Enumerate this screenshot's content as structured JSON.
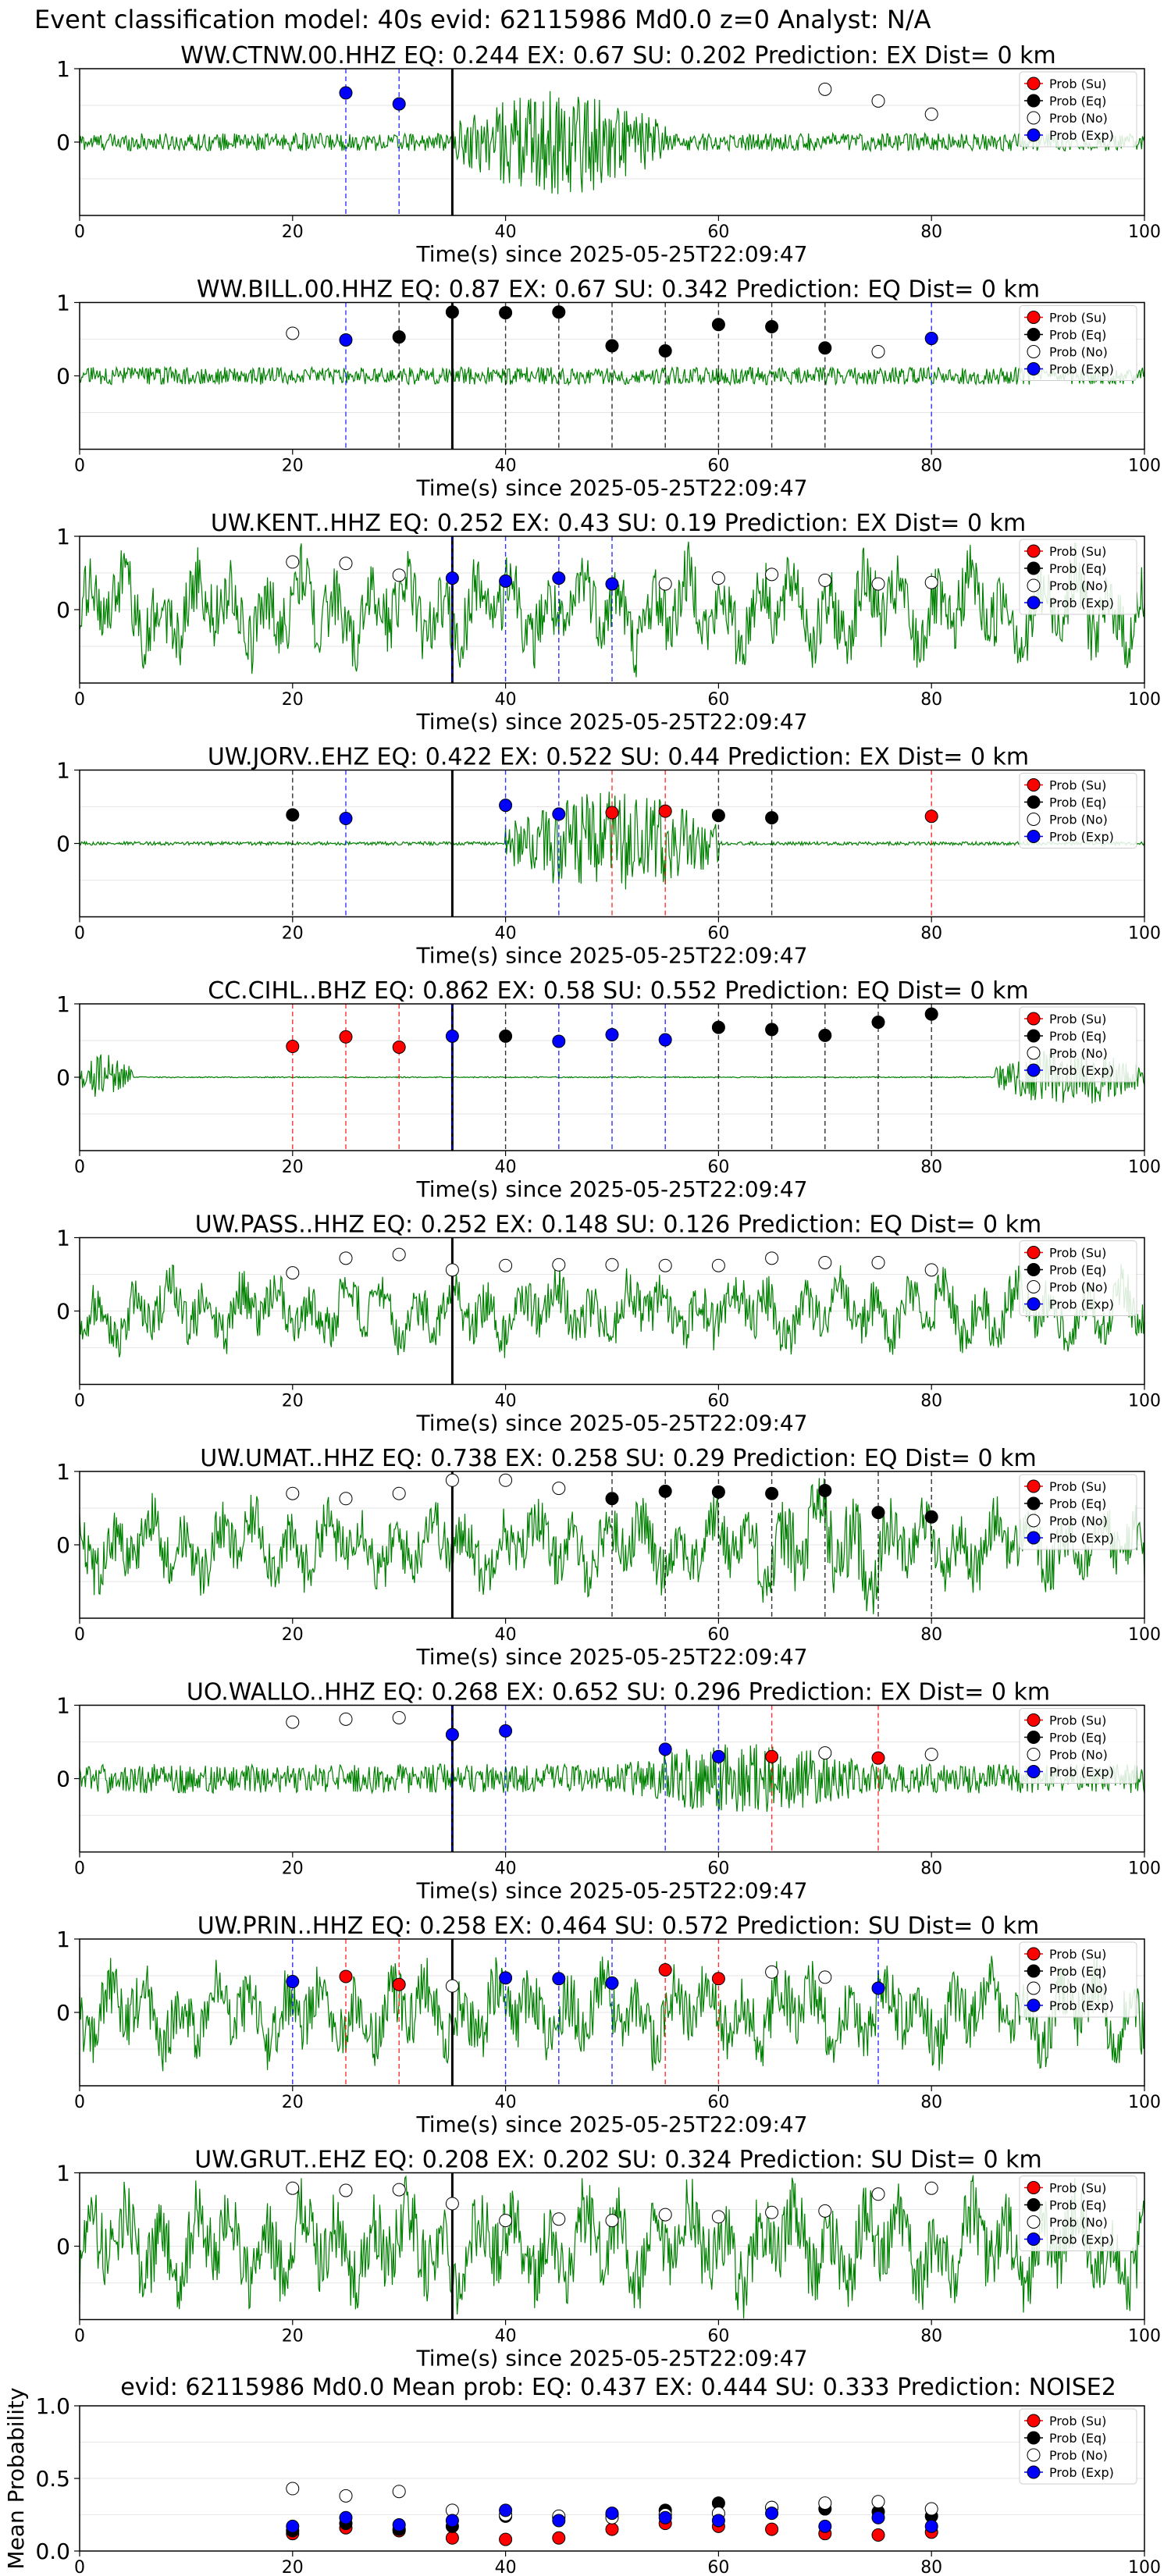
{
  "figure": {
    "suptitle": "Event classification model: 40s evid: 62115986 Md0.0 z=0 Analyst: N/A",
    "legend_labels": [
      "Prob (Su)",
      "Prob (Eq)",
      "Prob (No)",
      "Prob (Exp)"
    ],
    "colors": {
      "su": "#ff0000",
      "eq": "#000000",
      "no": "#ffffff",
      "exp": "#0000ff",
      "trace": "#008000"
    }
  },
  "chart_data": [
    {
      "type": "line",
      "title": "WW.CTNW.00.HHZ   EQ: 0.244  EX: 0.67  SU: 0.202   Prediction: EX    Dist= 0 km",
      "xlabel": "Time(s) since 2025-05-25T22:09:47",
      "ylabel": "",
      "xlim": [
        0,
        100
      ],
      "ylim": [
        -1,
        1
      ],
      "xticks": [
        0,
        20,
        40,
        60,
        80,
        100
      ],
      "yticks": [
        1,
        0
      ],
      "pick_time": 35,
      "trace": {
        "noise_level": 0.15,
        "burst": [
          [
            35,
            55,
            0.9
          ]
        ]
      },
      "markers": [
        {
          "x": 25,
          "y": 0.67,
          "class": "exp"
        },
        {
          "x": 30,
          "y": 0.52,
          "class": "exp"
        },
        {
          "x": 70,
          "y": 0.72,
          "class": "no"
        },
        {
          "x": 75,
          "y": 0.56,
          "class": "no"
        },
        {
          "x": 80,
          "y": 0.38,
          "class": "no"
        }
      ]
    },
    {
      "type": "line",
      "title": "WW.BILL.00.HHZ   EQ: 0.87  EX: 0.67  SU: 0.342   Prediction: EQ    Dist= 0 km",
      "xlabel": "Time(s) since 2025-05-25T22:09:47",
      "ylabel": "",
      "xlim": [
        0,
        100
      ],
      "ylim": [
        -1,
        1
      ],
      "xticks": [
        0,
        20,
        40,
        60,
        80,
        100
      ],
      "yticks": [
        1,
        0
      ],
      "pick_time": 35,
      "trace": {
        "noise_level": 0.15,
        "burst": []
      },
      "markers": [
        {
          "x": 20,
          "y": 0.58,
          "class": "no"
        },
        {
          "x": 25,
          "y": 0.49,
          "class": "exp"
        },
        {
          "x": 30,
          "y": 0.53,
          "class": "eq"
        },
        {
          "x": 35,
          "y": 0.87,
          "class": "eq"
        },
        {
          "x": 40,
          "y": 0.86,
          "class": "eq"
        },
        {
          "x": 45,
          "y": 0.87,
          "class": "eq"
        },
        {
          "x": 50,
          "y": 0.41,
          "class": "eq"
        },
        {
          "x": 55,
          "y": 0.34,
          "class": "eq"
        },
        {
          "x": 60,
          "y": 0.7,
          "class": "eq"
        },
        {
          "x": 65,
          "y": 0.67,
          "class": "eq"
        },
        {
          "x": 70,
          "y": 0.38,
          "class": "eq"
        },
        {
          "x": 75,
          "y": 0.33,
          "class": "no"
        },
        {
          "x": 80,
          "y": 0.51,
          "class": "exp"
        }
      ]
    },
    {
      "type": "line",
      "title": "UW.KENT..HHZ   EQ: 0.252  EX: 0.43  SU: 0.19   Prediction: EX    Dist= 0 km",
      "xlabel": "Time(s) since 2025-05-25T22:09:47",
      "ylabel": "",
      "xlim": [
        0,
        100
      ],
      "ylim": [
        -1,
        1
      ],
      "xticks": [
        0,
        20,
        40,
        60,
        80,
        100
      ],
      "yticks": [
        1,
        0
      ],
      "pick_time": 35,
      "trace": {
        "noise_level": 0.55,
        "burst": []
      },
      "markers": [
        {
          "x": 20,
          "y": 0.65,
          "class": "no"
        },
        {
          "x": 25,
          "y": 0.63,
          "class": "no"
        },
        {
          "x": 30,
          "y": 0.47,
          "class": "no"
        },
        {
          "x": 35,
          "y": 0.43,
          "class": "exp"
        },
        {
          "x": 40,
          "y": 0.39,
          "class": "exp"
        },
        {
          "x": 45,
          "y": 0.43,
          "class": "exp"
        },
        {
          "x": 50,
          "y": 0.35,
          "class": "exp"
        },
        {
          "x": 55,
          "y": 0.35,
          "class": "no"
        },
        {
          "x": 60,
          "y": 0.43,
          "class": "no"
        },
        {
          "x": 65,
          "y": 0.48,
          "class": "no"
        },
        {
          "x": 70,
          "y": 0.4,
          "class": "no"
        },
        {
          "x": 75,
          "y": 0.35,
          "class": "no"
        },
        {
          "x": 80,
          "y": 0.37,
          "class": "no"
        }
      ]
    },
    {
      "type": "line",
      "title": "UW.JORV..EHZ   EQ: 0.422  EX: 0.522  SU: 0.44   Prediction: EX    Dist= 0 km",
      "xlabel": "Time(s) since 2025-05-25T22:09:47",
      "ylabel": "",
      "xlim": [
        0,
        100
      ],
      "ylim": [
        -1,
        1
      ],
      "xticks": [
        0,
        20,
        40,
        60,
        80,
        100
      ],
      "yticks": [
        1,
        0
      ],
      "pick_time": 35,
      "trace": {
        "noise_level": 0.03,
        "burst": [
          [
            40,
            60,
            0.9
          ]
        ]
      },
      "markers": [
        {
          "x": 20,
          "y": 0.39,
          "class": "eq"
        },
        {
          "x": 25,
          "y": 0.34,
          "class": "exp"
        },
        {
          "x": 40,
          "y": 0.52,
          "class": "exp"
        },
        {
          "x": 45,
          "y": 0.4,
          "class": "exp"
        },
        {
          "x": 50,
          "y": 0.42,
          "class": "su"
        },
        {
          "x": 55,
          "y": 0.44,
          "class": "su"
        },
        {
          "x": 60,
          "y": 0.38,
          "class": "eq"
        },
        {
          "x": 65,
          "y": 0.35,
          "class": "eq"
        },
        {
          "x": 80,
          "y": 0.37,
          "class": "su"
        }
      ]
    },
    {
      "type": "line",
      "title": "CC.CIHL..BHZ   EQ: 0.862  EX: 0.58  SU: 0.552   Prediction: EQ    Dist= 0 km",
      "xlabel": "Time(s) since 2025-05-25T22:09:47",
      "ylabel": "",
      "xlim": [
        0,
        100
      ],
      "ylim": [
        -1,
        1
      ],
      "xticks": [
        0,
        20,
        40,
        60,
        80,
        100
      ],
      "yticks": [
        1,
        0
      ],
      "pick_time": 35,
      "trace": {
        "noise_level": 0.01,
        "burst": [
          [
            0,
            5,
            0.4
          ],
          [
            86,
            100,
            0.5
          ]
        ]
      },
      "markers": [
        {
          "x": 20,
          "y": 0.42,
          "class": "su"
        },
        {
          "x": 25,
          "y": 0.55,
          "class": "su"
        },
        {
          "x": 30,
          "y": 0.41,
          "class": "su"
        },
        {
          "x": 35,
          "y": 0.56,
          "class": "exp"
        },
        {
          "x": 40,
          "y": 0.56,
          "class": "eq"
        },
        {
          "x": 45,
          "y": 0.49,
          "class": "exp"
        },
        {
          "x": 50,
          "y": 0.58,
          "class": "exp"
        },
        {
          "x": 55,
          "y": 0.51,
          "class": "exp"
        },
        {
          "x": 60,
          "y": 0.68,
          "class": "eq"
        },
        {
          "x": 65,
          "y": 0.65,
          "class": "eq"
        },
        {
          "x": 70,
          "y": 0.57,
          "class": "eq"
        },
        {
          "x": 75,
          "y": 0.75,
          "class": "eq"
        },
        {
          "x": 80,
          "y": 0.86,
          "class": "eq"
        }
      ]
    },
    {
      "type": "line",
      "title": "UW.PASS..HHZ   EQ: 0.252  EX: 0.148  SU: 0.126   Prediction: EQ    Dist= 0 km",
      "xlabel": "Time(s) since 2025-05-25T22:09:47",
      "ylabel": "",
      "xlim": [
        0,
        100
      ],
      "ylim": [
        -1,
        1
      ],
      "xticks": [
        0,
        20,
        40,
        60,
        80,
        100
      ],
      "yticks": [
        1,
        0
      ],
      "pick_time": 35,
      "trace": {
        "noise_level": 0.4,
        "burst": []
      },
      "markers": [
        {
          "x": 20,
          "y": 0.52,
          "class": "no"
        },
        {
          "x": 25,
          "y": 0.72,
          "class": "no"
        },
        {
          "x": 30,
          "y": 0.77,
          "class": "no"
        },
        {
          "x": 35,
          "y": 0.56,
          "class": "no"
        },
        {
          "x": 40,
          "y": 0.62,
          "class": "no"
        },
        {
          "x": 45,
          "y": 0.63,
          "class": "no"
        },
        {
          "x": 50,
          "y": 0.63,
          "class": "no"
        },
        {
          "x": 55,
          "y": 0.62,
          "class": "no"
        },
        {
          "x": 60,
          "y": 0.62,
          "class": "no"
        },
        {
          "x": 65,
          "y": 0.72,
          "class": "no"
        },
        {
          "x": 70,
          "y": 0.66,
          "class": "no"
        },
        {
          "x": 75,
          "y": 0.66,
          "class": "no"
        },
        {
          "x": 80,
          "y": 0.56,
          "class": "no"
        }
      ]
    },
    {
      "type": "line",
      "title": "UW.UMAT..HHZ   EQ: 0.738  EX: 0.258  SU: 0.29   Prediction: EQ    Dist= 0 km",
      "xlabel": "Time(s) since 2025-05-25T22:09:47",
      "ylabel": "",
      "xlim": [
        0,
        100
      ],
      "ylim": [
        -1,
        1
      ],
      "xticks": [
        0,
        20,
        40,
        60,
        80,
        100
      ],
      "yticks": [
        1,
        0
      ],
      "pick_time": 35,
      "trace": {
        "noise_level": 0.45,
        "burst": [
          [
            60,
            80,
            0.7
          ]
        ]
      },
      "markers": [
        {
          "x": 20,
          "y": 0.7,
          "class": "no"
        },
        {
          "x": 25,
          "y": 0.63,
          "class": "no"
        },
        {
          "x": 30,
          "y": 0.7,
          "class": "no"
        },
        {
          "x": 35,
          "y": 0.88,
          "class": "no"
        },
        {
          "x": 40,
          "y": 0.88,
          "class": "no"
        },
        {
          "x": 45,
          "y": 0.77,
          "class": "no"
        },
        {
          "x": 50,
          "y": 0.63,
          "class": "eq"
        },
        {
          "x": 55,
          "y": 0.73,
          "class": "eq"
        },
        {
          "x": 60,
          "y": 0.72,
          "class": "eq"
        },
        {
          "x": 65,
          "y": 0.7,
          "class": "eq"
        },
        {
          "x": 70,
          "y": 0.74,
          "class": "eq"
        },
        {
          "x": 75,
          "y": 0.44,
          "class": "eq"
        },
        {
          "x": 80,
          "y": 0.38,
          "class": "eq"
        }
      ]
    },
    {
      "type": "line",
      "title": "UO.WALLO..HHZ   EQ: 0.268  EX: 0.652  SU: 0.296   Prediction: EX    Dist= 0 km",
      "xlabel": "Time(s) since 2025-05-25T22:09:47",
      "ylabel": "",
      "xlim": [
        0,
        100
      ],
      "ylim": [
        -1,
        1
      ],
      "xticks": [
        0,
        20,
        40,
        60,
        80,
        100
      ],
      "yticks": [
        1,
        0
      ],
      "pick_time": 35,
      "trace": {
        "noise_level": 0.25,
        "burst": [
          [
            50,
            75,
            0.6
          ]
        ]
      },
      "markers": [
        {
          "x": 20,
          "y": 0.77,
          "class": "no"
        },
        {
          "x": 25,
          "y": 0.81,
          "class": "no"
        },
        {
          "x": 30,
          "y": 0.83,
          "class": "no"
        },
        {
          "x": 35,
          "y": 0.6,
          "class": "exp"
        },
        {
          "x": 40,
          "y": 0.65,
          "class": "exp"
        },
        {
          "x": 55,
          "y": 0.4,
          "class": "exp"
        },
        {
          "x": 60,
          "y": 0.3,
          "class": "exp"
        },
        {
          "x": 65,
          "y": 0.3,
          "class": "su"
        },
        {
          "x": 70,
          "y": 0.35,
          "class": "no"
        },
        {
          "x": 75,
          "y": 0.28,
          "class": "su"
        },
        {
          "x": 80,
          "y": 0.33,
          "class": "no"
        }
      ]
    },
    {
      "type": "line",
      "title": "UW.PRIN..HHZ   EQ: 0.258  EX: 0.464  SU: 0.572   Prediction: SU    Dist= 0 km",
      "xlabel": "Time(s) since 2025-05-25T22:09:47",
      "ylabel": "",
      "xlim": [
        0,
        100
      ],
      "ylim": [
        -1,
        1
      ],
      "xticks": [
        0,
        20,
        40,
        60,
        80,
        100
      ],
      "yticks": [
        1,
        0
      ],
      "pick_time": 35,
      "trace": {
        "noise_level": 0.5,
        "burst": []
      },
      "markers": [
        {
          "x": 20,
          "y": 0.42,
          "class": "exp"
        },
        {
          "x": 25,
          "y": 0.49,
          "class": "su"
        },
        {
          "x": 30,
          "y": 0.38,
          "class": "su"
        },
        {
          "x": 35,
          "y": 0.36,
          "class": "no"
        },
        {
          "x": 40,
          "y": 0.47,
          "class": "exp"
        },
        {
          "x": 45,
          "y": 0.46,
          "class": "exp"
        },
        {
          "x": 50,
          "y": 0.4,
          "class": "exp"
        },
        {
          "x": 55,
          "y": 0.58,
          "class": "su"
        },
        {
          "x": 60,
          "y": 0.46,
          "class": "su"
        },
        {
          "x": 65,
          "y": 0.55,
          "class": "no"
        },
        {
          "x": 70,
          "y": 0.48,
          "class": "no"
        },
        {
          "x": 75,
          "y": 0.33,
          "class": "exp"
        }
      ]
    },
    {
      "type": "line",
      "title": "UW.GRUT..EHZ   EQ: 0.208  EX: 0.202  SU: 0.324   Prediction: SU    Dist= 0 km",
      "xlabel": "Time(s) since 2025-05-25T22:09:47",
      "ylabel": "",
      "xlim": [
        0,
        100
      ],
      "ylim": [
        -1,
        1
      ],
      "xticks": [
        0,
        20,
        40,
        60,
        80,
        100
      ],
      "yticks": [
        1,
        0
      ],
      "pick_time": 35,
      "trace": {
        "noise_level": 0.6,
        "burst": []
      },
      "markers": [
        {
          "x": 20,
          "y": 0.79,
          "class": "no"
        },
        {
          "x": 25,
          "y": 0.76,
          "class": "no"
        },
        {
          "x": 30,
          "y": 0.77,
          "class": "no"
        },
        {
          "x": 35,
          "y": 0.58,
          "class": "no"
        },
        {
          "x": 40,
          "y": 0.35,
          "class": "no"
        },
        {
          "x": 45,
          "y": 0.37,
          "class": "no"
        },
        {
          "x": 50,
          "y": 0.35,
          "class": "no"
        },
        {
          "x": 55,
          "y": 0.43,
          "class": "no"
        },
        {
          "x": 60,
          "y": 0.4,
          "class": "no"
        },
        {
          "x": 65,
          "y": 0.46,
          "class": "no"
        },
        {
          "x": 70,
          "y": 0.48,
          "class": "no"
        },
        {
          "x": 75,
          "y": 0.71,
          "class": "no"
        },
        {
          "x": 80,
          "y": 0.79,
          "class": "no"
        }
      ]
    },
    {
      "type": "scatter",
      "title": "evid: 62115986  Md0.0   Mean prob:   EQ: 0.437  EX: 0.444  SU: 0.333   Prediction: NOISE2",
      "xlabel": "",
      "ylabel": "Mean Probability",
      "xlim": [
        0,
        100
      ],
      "ylim": [
        0,
        1
      ],
      "xticks": [
        0,
        20,
        40,
        60,
        80,
        100
      ],
      "yticks": [
        0.0,
        0.5,
        1.0
      ],
      "ytick_labels": [
        "0.0",
        "0.5",
        "1.0"
      ],
      "x": [
        20,
        25,
        30,
        35,
        40,
        45,
        50,
        55,
        60,
        65,
        70,
        75,
        80
      ],
      "series": [
        {
          "name": "Prob (Su)",
          "class": "su",
          "values": [
            0.12,
            0.16,
            0.14,
            0.09,
            0.08,
            0.09,
            0.15,
            0.19,
            0.17,
            0.15,
            0.12,
            0.11,
            0.13
          ]
        },
        {
          "name": "Prob (Eq)",
          "class": "eq",
          "values": [
            0.14,
            0.19,
            0.15,
            0.17,
            0.24,
            0.23,
            0.25,
            0.28,
            0.33,
            0.3,
            0.29,
            0.27,
            0.24
          ]
        },
        {
          "name": "Prob (No)",
          "class": "no",
          "values": [
            0.43,
            0.38,
            0.41,
            0.28,
            0.25,
            0.24,
            0.23,
            0.25,
            0.26,
            0.3,
            0.33,
            0.34,
            0.29
          ]
        },
        {
          "name": "Prob (Exp)",
          "class": "exp",
          "values": [
            0.17,
            0.23,
            0.18,
            0.21,
            0.28,
            0.21,
            0.26,
            0.23,
            0.21,
            0.26,
            0.17,
            0.23,
            0.17
          ]
        }
      ]
    }
  ]
}
